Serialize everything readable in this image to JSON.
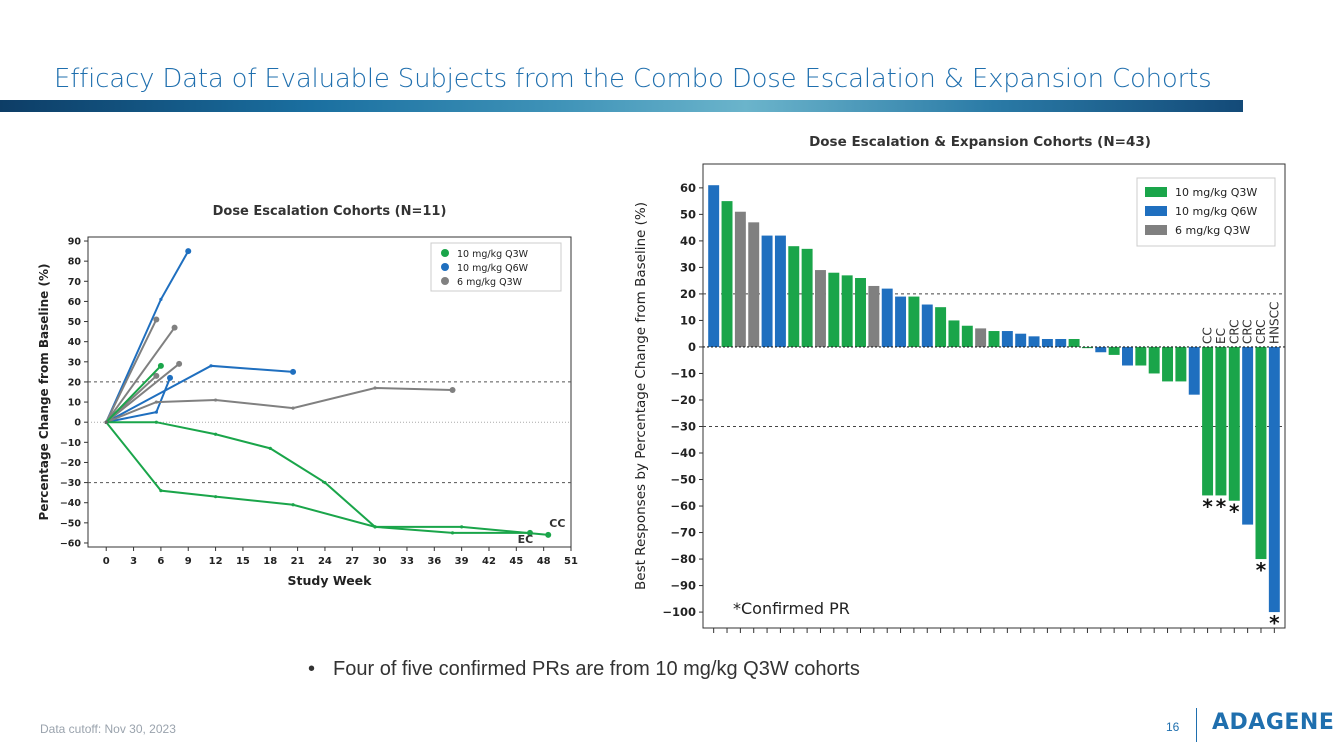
{
  "slide": {
    "title": "Efficacy Data of Evaluable Subjects from the Combo Dose Escalation & Expansion Cohorts",
    "bullet": "Four of five confirmed PRs are from 10 mg/kg Q3W cohorts",
    "footer": "Data cutoff: Nov 30, 2023",
    "page_number": "16",
    "logo": "ADAGENE"
  },
  "chart_data": [
    {
      "type": "line",
      "title": "Dose Escalation Cohorts (N=11)",
      "xlabel": "Study Week",
      "ylabel": "Percentage Change from Baseline (%)",
      "xlim": [
        -2,
        51
      ],
      "ylim": [
        -62,
        92
      ],
      "xticks": [
        0,
        3,
        6,
        9,
        12,
        15,
        18,
        21,
        24,
        27,
        30,
        33,
        36,
        39,
        42,
        45,
        48,
        51
      ],
      "yticks": [
        -60,
        -50,
        -40,
        -30,
        -20,
        -10,
        0,
        10,
        20,
        30,
        40,
        50,
        60,
        70,
        80,
        90
      ],
      "reference_lines": [
        20,
        0,
        -30
      ],
      "legend_position": "top-right",
      "legend": [
        {
          "label": "10 mg/kg Q3W",
          "color": "#1aa54a"
        },
        {
          "label": "10 mg/kg Q6W",
          "color": "#1f6fbf"
        },
        {
          "label": " 6 mg/kg Q3W",
          "color": "#808080"
        }
      ],
      "annotations": [
        {
          "text": "CC",
          "x": 49.5,
          "y": -52
        },
        {
          "text": "EC",
          "x": 46,
          "y": -60
        }
      ],
      "series": [
        {
          "group": "10 mg/kg Q6W",
          "color": "#1f6fbf",
          "x": [
            0,
            6,
            9
          ],
          "y": [
            0,
            61,
            85
          ]
        },
        {
          "group": "10 mg/kg Q6W",
          "color": "#1f6fbf",
          "x": [
            0,
            11.5,
            20.5
          ],
          "y": [
            0,
            28,
            25
          ]
        },
        {
          "group": "10 mg/kg Q6W",
          "color": "#1f6fbf",
          "x": [
            0,
            5.5,
            7
          ],
          "y": [
            0,
            5,
            22
          ]
        },
        {
          "group": "6 mg/kg Q3W",
          "color": "#808080",
          "x": [
            0,
            5.5
          ],
          "y": [
            0,
            51
          ]
        },
        {
          "group": "6 mg/kg Q3W",
          "color": "#808080",
          "x": [
            0,
            7.5
          ],
          "y": [
            0,
            47
          ]
        },
        {
          "group": "6 mg/kg Q3W",
          "color": "#808080",
          "x": [
            0,
            8
          ],
          "y": [
            0,
            29
          ]
        },
        {
          "group": "6 mg/kg Q3W",
          "color": "#808080",
          "x": [
            0,
            5.5
          ],
          "y": [
            0,
            23
          ]
        },
        {
          "group": "6 mg/kg Q3W",
          "color": "#808080",
          "x": [
            0,
            5.5,
            12,
            20.5,
            29.5,
            38
          ],
          "y": [
            0,
            10,
            11,
            7,
            17,
            16
          ]
        },
        {
          "group": "10 mg/kg Q3W",
          "color": "#1aa54a",
          "x": [
            0,
            6
          ],
          "y": [
            0,
            28
          ]
        },
        {
          "group": "10 mg/kg Q3W",
          "color": "#1aa54a",
          "x": [
            0,
            5.5,
            12,
            18,
            24,
            29.5,
            38,
            46.5
          ],
          "y": [
            0,
            0,
            -6,
            -13,
            -30,
            -52,
            -55,
            -55
          ]
        },
        {
          "group": "10 mg/kg Q3W",
          "color": "#1aa54a",
          "x": [
            0,
            6,
            12,
            20.5,
            29.5,
            39,
            48.5
          ],
          "y": [
            0,
            -34,
            -37,
            -41,
            -52,
            -52,
            -56
          ]
        }
      ]
    },
    {
      "type": "bar",
      "title": "Dose Escalation & Expansion Cohorts (N=43)",
      "xlabel": "",
      "ylabel": "Best Responses by Percentage Change from Baseline (%)",
      "ylim": [
        -106,
        69
      ],
      "yticks": [
        60,
        50,
        40,
        30,
        20,
        10,
        0,
        -10,
        -20,
        -30,
        -40,
        -50,
        -60,
        -70,
        -80,
        -90,
        -100
      ],
      "reference_lines": [
        20,
        -30
      ],
      "legend_position": "top-right",
      "legend": [
        {
          "label": "10 mg/kg Q3W",
          "color": "#1aa54a"
        },
        {
          "label": "10 mg/kg Q6W",
          "color": "#1f6fbf"
        },
        {
          "label": " 6 mg/kg Q3W",
          "color": "#808080"
        }
      ],
      "note": "*Confirmed PR",
      "bars": [
        {
          "value": 61,
          "group": "Q6W"
        },
        {
          "value": 55,
          "group": "Q3W10"
        },
        {
          "value": 51,
          "group": "Q3W6"
        },
        {
          "value": 47,
          "group": "Q3W6"
        },
        {
          "value": 42,
          "group": "Q6W"
        },
        {
          "value": 42,
          "group": "Q6W"
        },
        {
          "value": 38,
          "group": "Q3W10"
        },
        {
          "value": 37,
          "group": "Q3W10"
        },
        {
          "value": 29,
          "group": "Q3W6"
        },
        {
          "value": 28,
          "group": "Q3W10"
        },
        {
          "value": 27,
          "group": "Q3W10"
        },
        {
          "value": 26,
          "group": "Q3W10"
        },
        {
          "value": 23,
          "group": "Q3W6"
        },
        {
          "value": 22,
          "group": "Q6W"
        },
        {
          "value": 19,
          "group": "Q6W"
        },
        {
          "value": 19,
          "group": "Q3W10"
        },
        {
          "value": 16,
          "group": "Q6W"
        },
        {
          "value": 15,
          "group": "Q3W10"
        },
        {
          "value": 10,
          "group": "Q3W10"
        },
        {
          "value": 8,
          "group": "Q3W10"
        },
        {
          "value": 7,
          "group": "Q3W6"
        },
        {
          "value": 6,
          "group": "Q3W10"
        },
        {
          "value": 6,
          "group": "Q6W"
        },
        {
          "value": 5,
          "group": "Q6W"
        },
        {
          "value": 4,
          "group": "Q6W"
        },
        {
          "value": 3,
          "group": "Q6W"
        },
        {
          "value": 3,
          "group": "Q6W"
        },
        {
          "value": 3,
          "group": "Q3W10"
        },
        {
          "value": 0,
          "group": "Q3W10"
        },
        {
          "value": -2,
          "group": "Q6W"
        },
        {
          "value": -3,
          "group": "Q3W10"
        },
        {
          "value": -7,
          "group": "Q6W"
        },
        {
          "value": -7,
          "group": "Q3W10"
        },
        {
          "value": -10,
          "group": "Q3W10"
        },
        {
          "value": -13,
          "group": "Q3W10"
        },
        {
          "value": -13,
          "group": "Q3W10"
        },
        {
          "value": -18,
          "group": "Q6W"
        },
        {
          "value": -56,
          "group": "Q3W10",
          "label": "CC",
          "star": true
        },
        {
          "value": -56,
          "group": "Q3W10",
          "label": "EC",
          "star": true
        },
        {
          "value": -58,
          "group": "Q3W10",
          "label": "CRC",
          "star": true
        },
        {
          "value": -67,
          "group": "Q6W",
          "label": "CRC"
        },
        {
          "value": -80,
          "group": "Q3W10",
          "label": "CRC",
          "star": true
        },
        {
          "value": -100,
          "group": "Q6W",
          "label": "HNSCC",
          "star": true
        }
      ],
      "group_colors": {
        "Q3W10": "#1aa54a",
        "Q6W": "#1f6fbf",
        "Q3W6": "#808080"
      }
    }
  ]
}
